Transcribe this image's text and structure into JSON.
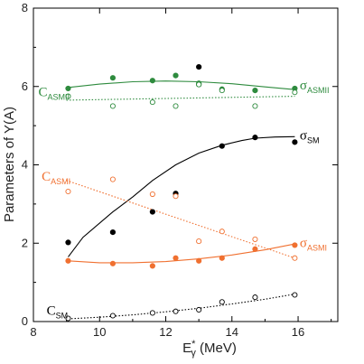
{
  "chart_data": {
    "type": "scatter",
    "xlabel": {
      "main": "E",
      "sup": "*",
      "sub": "γ",
      "rest": " (MeV)"
    },
    "ylabel": "Parameters of Y(A)",
    "xlim": [
      8,
      17.2
    ],
    "ylim": [
      0,
      8
    ],
    "xticks": [
      8,
      10,
      12,
      14,
      16
    ],
    "yticks": [
      0,
      2,
      4,
      6,
      8
    ],
    "grid": false,
    "series": [
      {
        "key": "sigma_ASMII",
        "name": {
          "sym": "σ",
          "sub": "ASMII"
        },
        "color": "#2e8b3e",
        "marker": "filled",
        "line": "solid",
        "x": [
          9.05,
          10.4,
          11.6,
          12.3,
          13.0,
          13.0,
          13.7,
          14.7,
          15.9
        ],
        "y": [
          5.95,
          6.22,
          6.15,
          6.28,
          6.08,
          6.05,
          5.93,
          5.9,
          5.95
        ],
        "fit_x": [
          9.0,
          10.0,
          11.0,
          12.0,
          13.0,
          14.0,
          15.0,
          15.9
        ],
        "fit_y": [
          5.97,
          6.06,
          6.12,
          6.14,
          6.12,
          6.07,
          5.99,
          5.92
        ]
      },
      {
        "key": "C_ASMII",
        "name": {
          "sym": "C",
          "sub": "ASMII"
        },
        "color": "#2e8b3e",
        "marker": "open",
        "line": "dotted",
        "x": [
          9.05,
          10.4,
          11.6,
          12.3,
          13.0,
          13.7,
          14.7,
          15.9
        ],
        "y": [
          5.75,
          5.5,
          5.6,
          5.5,
          6.05,
          5.9,
          5.5,
          5.85
        ],
        "fit_x": [
          9.0,
          15.9
        ],
        "fit_y": [
          5.65,
          5.75
        ]
      },
      {
        "key": "sigma_SM",
        "name": {
          "sym": "σ",
          "sub": "SM"
        },
        "color": "#000000",
        "marker": "filled",
        "line": "solid",
        "x": [
          9.05,
          10.4,
          11.6,
          12.3,
          13.0,
          13.7,
          14.7,
          15.9
        ],
        "y": [
          2.02,
          2.28,
          2.8,
          3.27,
          6.5,
          4.48,
          4.7,
          4.58
        ],
        "fit_x": [
          9.05,
          9.5,
          10.4,
          11.0,
          11.6,
          12.3,
          13.0,
          13.7,
          14.3,
          14.7,
          15.3,
          15.9
        ],
        "fit_y": [
          1.65,
          2.15,
          2.8,
          3.18,
          3.6,
          4.0,
          4.3,
          4.5,
          4.62,
          4.68,
          4.71,
          4.72
        ]
      },
      {
        "key": "C_ASMI",
        "name": {
          "sym": "C",
          "sub": "ASMI"
        },
        "color": "#f07030",
        "marker": "open",
        "line": "dotted",
        "x": [
          9.05,
          10.4,
          11.6,
          12.3,
          13.0,
          13.7,
          14.7,
          15.9
        ],
        "y": [
          3.32,
          3.63,
          3.25,
          3.2,
          2.05,
          2.3,
          2.1,
          1.62
        ],
        "fit_x": [
          9.0,
          15.9
        ],
        "fit_y": [
          3.6,
          1.62
        ]
      },
      {
        "key": "sigma_ASMI",
        "name": {
          "sym": "σ",
          "sub": "ASMI"
        },
        "color": "#f07030",
        "marker": "filled",
        "line": "solid",
        "x": [
          9.05,
          10.4,
          11.6,
          12.3,
          13.0,
          13.7,
          14.7,
          15.9
        ],
        "y": [
          1.55,
          1.48,
          1.42,
          1.62,
          1.55,
          1.62,
          1.85,
          1.95
        ],
        "fit_x": [
          9.05,
          10.0,
          11.0,
          12.0,
          13.0,
          14.0,
          15.0,
          15.9
        ],
        "fit_y": [
          1.55,
          1.5,
          1.5,
          1.53,
          1.6,
          1.7,
          1.83,
          1.98
        ]
      },
      {
        "key": "C_SM",
        "name": {
          "sym": "C",
          "sub": "SM"
        },
        "color": "#000000",
        "marker": "open",
        "line": "dotted",
        "x": [
          9.05,
          10.4,
          11.6,
          12.3,
          13.0,
          13.7,
          14.7,
          15.9
        ],
        "y": [
          0.08,
          0.15,
          0.22,
          0.26,
          0.3,
          0.5,
          0.62,
          0.68
        ],
        "fit_x": [
          9.05,
          10.0,
          11.0,
          12.0,
          13.0,
          14.0,
          15.0,
          15.9
        ],
        "fit_y": [
          0.07,
          0.11,
          0.17,
          0.25,
          0.34,
          0.45,
          0.57,
          0.7
        ]
      }
    ],
    "annotations": [
      {
        "series": "C_ASMII",
        "sym": "C",
        "sub": "ASMII",
        "x": 8.15,
        "y": 5.75,
        "color": "#2e8b3e"
      },
      {
        "series": "sigma_ASMII",
        "sym": "σ",
        "sub": "ASMII",
        "x": 16.05,
        "y": 5.92,
        "color": "#2e8b3e"
      },
      {
        "series": "sigma_SM",
        "sym": "σ",
        "sub": "SM",
        "x": 16.05,
        "y": 4.65,
        "color": "#000000"
      },
      {
        "series": "C_ASMI",
        "sym": "C",
        "sub": "ASMI",
        "x": 8.25,
        "y": 3.6,
        "color": "#f07030"
      },
      {
        "series": "sigma_ASMI",
        "sym": "σ",
        "sub": "ASMI",
        "x": 16.05,
        "y": 1.9,
        "color": "#f07030"
      },
      {
        "series": "C_SM",
        "sym": "C",
        "sub": "SM",
        "x": 8.4,
        "y": 0.17,
        "color": "#000000"
      }
    ]
  }
}
